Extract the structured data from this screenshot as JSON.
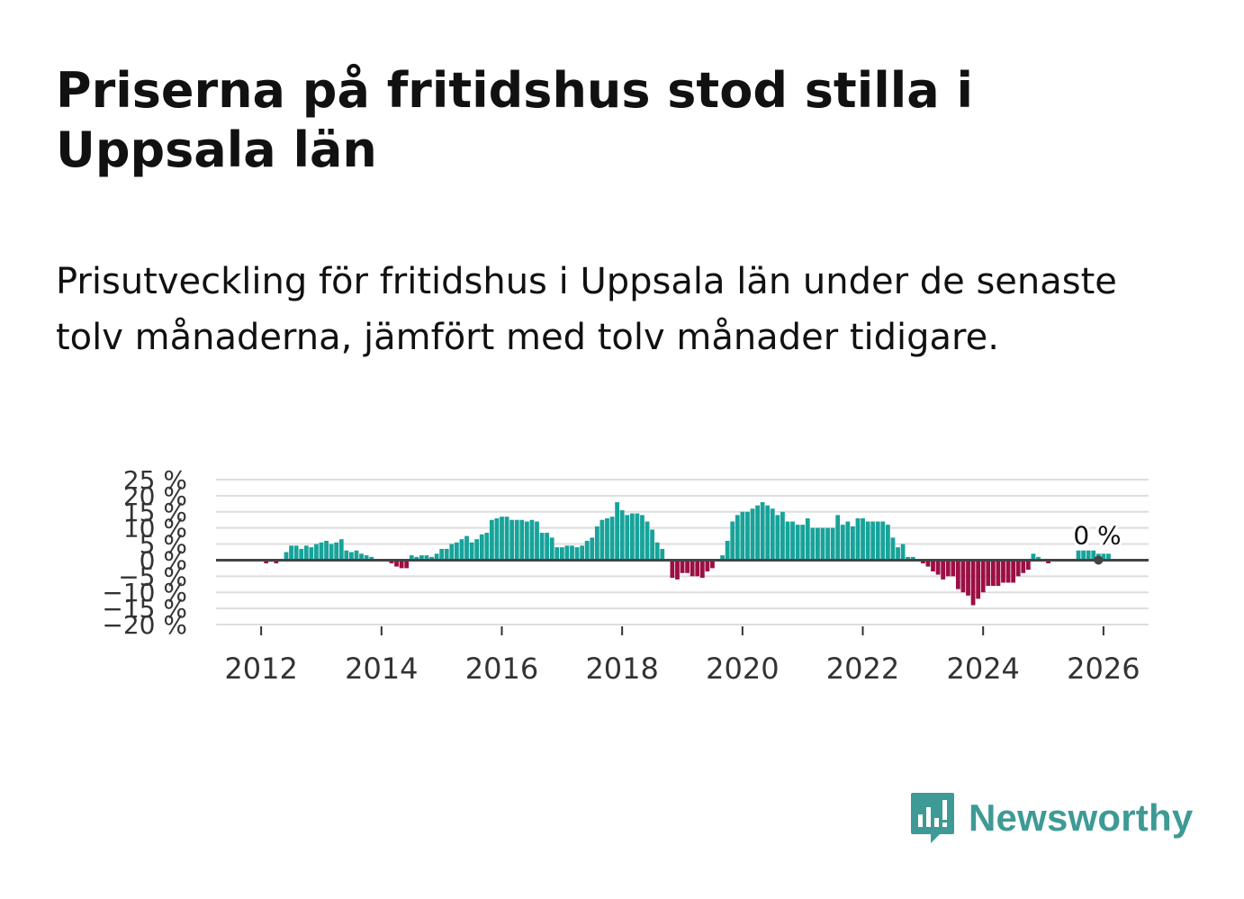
{
  "title": "Priserna på fritidshus stod stilla i Uppsala län",
  "subtitle": "Prisutveckling för fritidshus i Uppsala län under de senaste tolv månaderna, jämfört med tolv månader tidigare.",
  "brand": {
    "name": "Newsworthy"
  },
  "colors": {
    "positive": "#17a39a",
    "negative": "#9b0f45",
    "grid": "#dddddd",
    "zero_line": "#444444",
    "text": "#333333"
  },
  "chart_data": {
    "type": "bar",
    "title": "Priserna på fritidshus stod stilla i Uppsala län",
    "xlabel": "",
    "ylabel": "",
    "ylim": [
      -20,
      25
    ],
    "xlim": [
      2011.25,
      2026.75
    ],
    "y_ticks": [
      25,
      20,
      15,
      10,
      5,
      0,
      -5,
      -10,
      -15,
      -20
    ],
    "y_tick_labels": [
      "25 %",
      "20 %",
      "15 %",
      "10 %",
      "5 %",
      "0 %",
      "−5 %",
      "−10 %",
      "−15 %",
      "−20 %"
    ],
    "x_ticks": [
      2012,
      2014,
      2016,
      2018,
      2020,
      2022,
      2024,
      2026
    ],
    "x_tick_labels": [
      "2012",
      "2014",
      "2016",
      "2018",
      "2020",
      "2022",
      "2024",
      "2026"
    ],
    "series_start": 2011.667,
    "period": "monthly",
    "annotation": {
      "x": 2025.917,
      "y": 0,
      "label": "0 %"
    },
    "values": [
      0,
      0,
      0,
      0,
      0,
      -1,
      -0.5,
      -1,
      0,
      2.5,
      4.5,
      4.5,
      3.5,
      4.5,
      4,
      5,
      5.5,
      6,
      5,
      5.5,
      6.5,
      3,
      2.5,
      3,
      2,
      1.5,
      1,
      0,
      0,
      0,
      -1,
      -2,
      -2.5,
      -2.5,
      1.5,
      1,
      1.5,
      1.5,
      1,
      2,
      3.5,
      3.5,
      5,
      5.5,
      6.5,
      7.5,
      5.5,
      6.5,
      8,
      8.5,
      12.5,
      13,
      13.5,
      13.5,
      12.5,
      12.5,
      12.5,
      12,
      12.5,
      12,
      8.5,
      8.5,
      7,
      4,
      4,
      4.5,
      4.5,
      4,
      4.5,
      6,
      7,
      10.5,
      12.5,
      13,
      13.5,
      18,
      15.5,
      14,
      14.5,
      14.5,
      14,
      12,
      9.5,
      5.5,
      3.5,
      0,
      -5.5,
      -6,
      -4,
      -4,
      -5,
      -5,
      -5.5,
      -3.5,
      -2.5,
      0,
      1.5,
      6,
      12,
      14,
      15,
      15,
      16,
      17,
      18,
      17,
      16,
      14,
      15,
      12,
      12,
      11,
      11,
      13,
      10,
      10,
      10,
      10,
      10,
      14,
      11,
      12,
      10.5,
      13,
      13,
      12,
      12,
      12,
      12,
      11,
      7,
      4,
      5,
      1,
      1,
      0,
      -1,
      -2,
      -3.5,
      -4.5,
      -6,
      -5,
      -5,
      -9,
      -10,
      -11,
      -14,
      -12,
      -10,
      -8,
      -8,
      -8,
      -7,
      -7,
      -7,
      -5,
      -4,
      -3,
      2,
      1,
      0,
      -1,
      0,
      0,
      0,
      0,
      0,
      3,
      3,
      3,
      3,
      2,
      2,
      2,
      0,
      0,
      0,
      0,
      0
    ]
  }
}
